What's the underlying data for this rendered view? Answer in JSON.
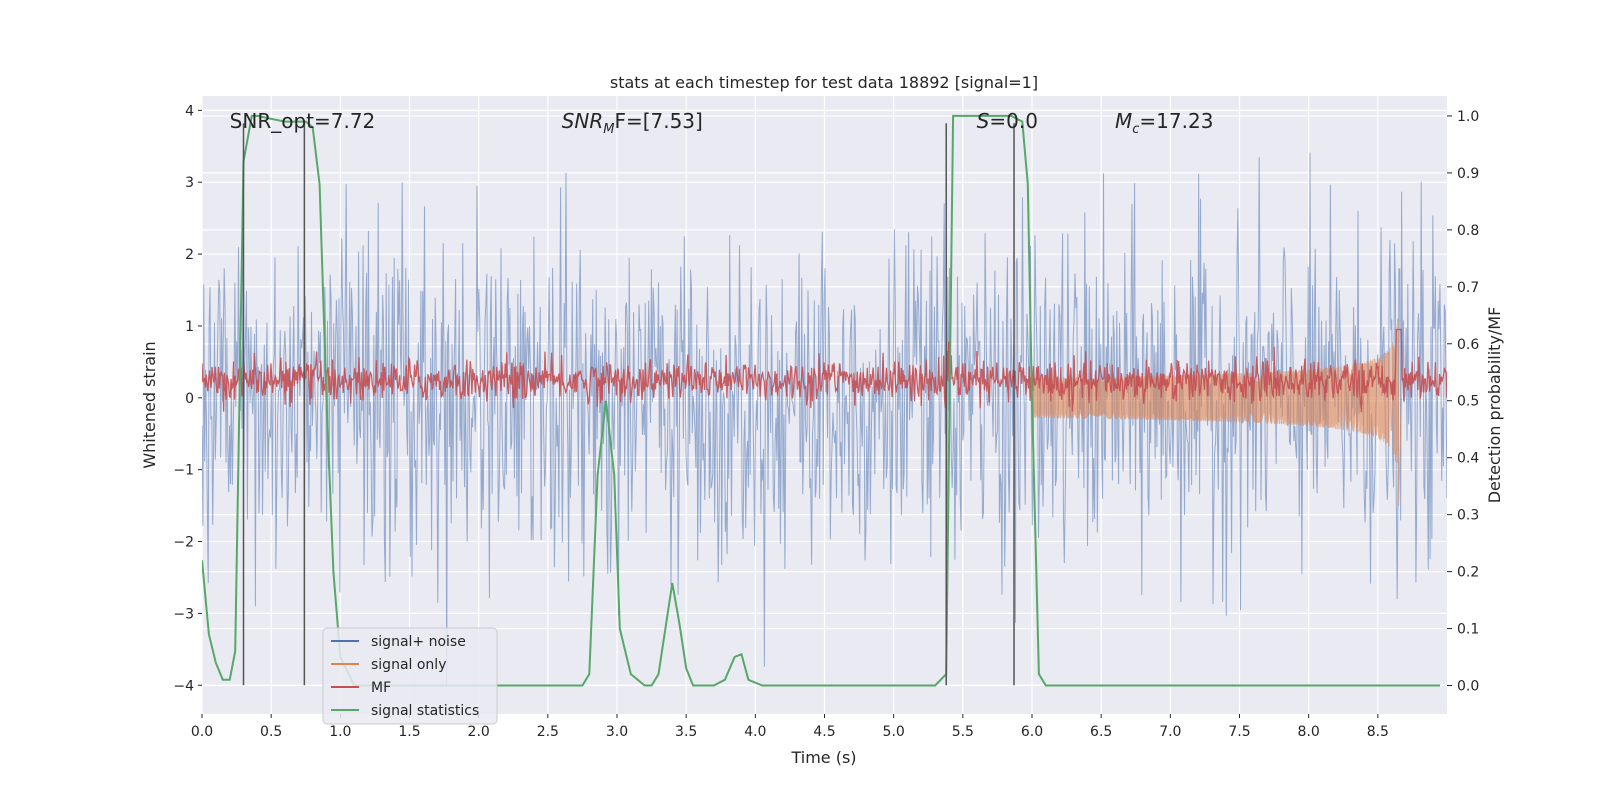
{
  "chart_data": {
    "type": "line",
    "title": "stats at each timestep for test data 18892 [signal=1]",
    "xlabel": "Time (s)",
    "ylabel_left": "Whitened strain",
    "ylabel_right": "Detection probability/MF",
    "xlim": [
      0.0,
      9.0
    ],
    "ylim_left": [
      -4.4,
      4.2
    ],
    "ylim_right": [
      -0.05,
      1.035
    ],
    "x_ticks": [
      0.0,
      0.5,
      1.0,
      1.5,
      2.0,
      2.5,
      3.0,
      3.5,
      4.0,
      4.5,
      5.0,
      5.5,
      6.0,
      6.5,
      7.0,
      7.5,
      8.0,
      8.5
    ],
    "x_tick_labels": [
      "0.0",
      "0.5",
      "1.0",
      "1.5",
      "2.0",
      "2.5",
      "3.0",
      "3.5",
      "4.0",
      "4.5",
      "5.0",
      "5.5",
      "6.0",
      "6.5",
      "7.0",
      "7.5",
      "8.0",
      "8.5"
    ],
    "y_left_ticks": [
      4,
      3,
      2,
      1,
      0,
      -1,
      -2,
      -3,
      -4
    ],
    "y_left_tick_labels": [
      "4",
      "3",
      "2",
      "1",
      "0",
      "−1",
      "−2",
      "−3",
      "−4"
    ],
    "y_right_ticks": [
      1.0,
      0.9,
      0.8,
      0.7,
      0.6,
      0.5,
      0.4,
      0.3,
      0.2,
      0.1,
      0.0
    ],
    "y_right_tick_labels": [
      "1.0",
      "0.9",
      "0.8",
      "0.7",
      "0.6",
      "0.5",
      "0.4",
      "0.3",
      "0.2",
      "0.1",
      "0.0"
    ],
    "grid": true,
    "legend_position": "lower-left",
    "annotations": [
      {
        "id": "snr-opt",
        "text": "SNR_opt=7.72",
        "x": 0.2,
        "y": 3.85
      },
      {
        "id": "snr-mf",
        "prefix": "SNR",
        "sub": "M",
        "suffix": "F=[7.53]",
        "x": 2.6,
        "y": 3.85
      },
      {
        "id": "s-stat",
        "prefix": "S",
        "suffix": "=0.0",
        "x": 5.6,
        "y": 3.85
      },
      {
        "id": "mc",
        "prefix": "M",
        "sub": "c",
        "suffix": "=17.23",
        "x": 6.6,
        "y": 3.85
      }
    ],
    "vertical_markers_x": [
      0.3,
      0.74,
      5.38,
      5.87
    ],
    "vertical_markers_y": [
      -4.0,
      3.82
    ],
    "series": [
      {
        "name": "signal+ noise",
        "color": "#4c72b0",
        "axis": "left",
        "style": "noise",
        "sigma": 1.0,
        "points": 1400
      },
      {
        "name": "signal only",
        "color": "#dd8452",
        "axis": "left",
        "style": "chirp",
        "merger_x": 8.65,
        "peak_amplitude": 1.45
      },
      {
        "name": "MF",
        "color": "#c44e52",
        "axis": "right",
        "style": "noise",
        "baseline": 0.535,
        "spread": 0.018
      },
      {
        "name": "signal statistics",
        "color": "#55a868",
        "axis": "right",
        "style": "line",
        "x": [
          0.0,
          0.05,
          0.1,
          0.15,
          0.2,
          0.24,
          0.3,
          0.36,
          0.4,
          0.5,
          0.6,
          0.65,
          0.75,
          0.8,
          0.85,
          0.9,
          0.95,
          1.0,
          1.1,
          1.3,
          1.6,
          2.0,
          2.4,
          2.75,
          2.8,
          2.86,
          2.92,
          2.98,
          3.02,
          3.1,
          3.2,
          3.25,
          3.3,
          3.35,
          3.4,
          3.45,
          3.5,
          3.55,
          3.6,
          3.7,
          3.78,
          3.85,
          3.9,
          3.95,
          4.05,
          4.5,
          5.0,
          5.3,
          5.38,
          5.43,
          5.5,
          5.6,
          5.85,
          5.93,
          5.97,
          6.0,
          6.05,
          6.1,
          6.5,
          7.0,
          7.5,
          8.0,
          8.5,
          8.95
        ],
        "y": [
          0.22,
          0.09,
          0.04,
          0.01,
          0.01,
          0.06,
          0.92,
          1.0,
          1.0,
          0.995,
          0.99,
          0.99,
          0.99,
          0.98,
          0.88,
          0.5,
          0.2,
          0.05,
          0.0,
          0.0,
          0.0,
          0.0,
          0.0,
          0.0,
          0.02,
          0.37,
          0.5,
          0.37,
          0.1,
          0.02,
          0.0,
          0.0,
          0.02,
          0.1,
          0.18,
          0.11,
          0.03,
          0.0,
          0.0,
          0.0,
          0.01,
          0.05,
          0.055,
          0.01,
          0.0,
          0.0,
          0.0,
          0.0,
          0.02,
          1.0,
          1.0,
          1.0,
          1.0,
          0.99,
          0.88,
          0.5,
          0.02,
          0.0,
          0.0,
          0.0,
          0.0,
          0.0,
          0.0,
          0.0
        ]
      }
    ]
  }
}
